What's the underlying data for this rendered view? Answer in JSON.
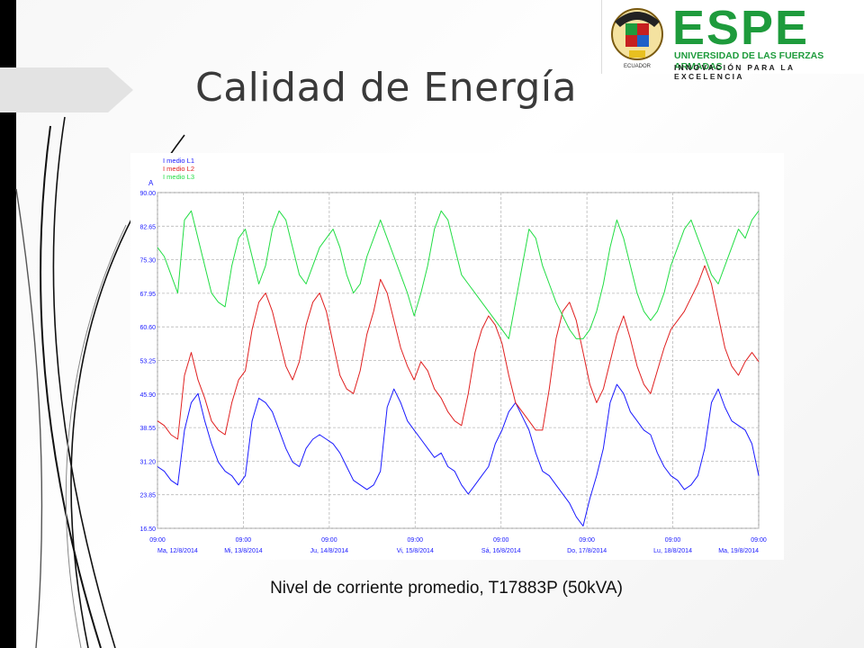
{
  "slide": {
    "title": "Calidad de Energía",
    "caption": "Nivel de corriente promedio, T17883P (50kVA)"
  },
  "logo": {
    "name": "ESPE",
    "subtitle": "UNIVERSIDAD DE LAS FUERZAS ARMADAS",
    "tagline": "INNOVACIÓN PARA LA EXCELENCIA",
    "seal_text": "ECUADOR",
    "brand_color": "#1e9b3c"
  },
  "chart_data": {
    "type": "line",
    "y_unit": "A",
    "ylim": [
      16.5,
      90.0
    ],
    "yticks": [
      "90.00",
      "82.65",
      "75.30",
      "67.95",
      "60.60",
      "53.25",
      "45.90",
      "38.55",
      "31.20",
      "23.85",
      "16.50"
    ],
    "x_tick_time": "09:00",
    "x_tick_dates": [
      "Ma, 12/8/2014",
      "Mi, 13/8/2014",
      "Ju, 14/8/2014",
      "Vi, 15/8/2014",
      "Sá, 16/8/2014",
      "Do, 17/8/2014",
      "Lu, 18/8/2014",
      "Ma, 19/8/2014"
    ],
    "grid": true,
    "legend_position": "top-left",
    "series": [
      {
        "name": "I medio L1",
        "color": "#1a1aff",
        "values": [
          30,
          29,
          27,
          26,
          38,
          44,
          46,
          40,
          35,
          31,
          29,
          28,
          26,
          28,
          40,
          45,
          44,
          42,
          38,
          34,
          31,
          30,
          34,
          36,
          37,
          36,
          35,
          33,
          30,
          27,
          26,
          25,
          26,
          29,
          43,
          47,
          44,
          40,
          38,
          36,
          34,
          32,
          33,
          30,
          29,
          26,
          24,
          26,
          28,
          30,
          35,
          38,
          42,
          44,
          41,
          38,
          33,
          29,
          28,
          26,
          24,
          22,
          19,
          17,
          23,
          28,
          34,
          44,
          48,
          46,
          42,
          40,
          38,
          37,
          33,
          30,
          28,
          27,
          25,
          26,
          28,
          34,
          44,
          47,
          43,
          40,
          39,
          38,
          35,
          28
        ]
      },
      {
        "name": "I medio L2",
        "color": "#e02020",
        "values": [
          40,
          39,
          37,
          36,
          50,
          55,
          49,
          45,
          40,
          38,
          37,
          44,
          49,
          51,
          60,
          66,
          68,
          64,
          58,
          52,
          49,
          53,
          61,
          66,
          68,
          64,
          57,
          50,
          47,
          46,
          51,
          59,
          64,
          71,
          68,
          62,
          56,
          52,
          49,
          53,
          51,
          47,
          45,
          42,
          40,
          39,
          46,
          55,
          60,
          63,
          61,
          57,
          50,
          44,
          42,
          40,
          38,
          38,
          47,
          58,
          64,
          66,
          62,
          55,
          48,
          44,
          47,
          53,
          59,
          63,
          58,
          52,
          48,
          46,
          51,
          56,
          60,
          62,
          64,
          67,
          70,
          74,
          70,
          63,
          56,
          52,
          50,
          53,
          55,
          53
        ]
      },
      {
        "name": "I medio L3",
        "color": "#22dd44",
        "values": [
          78,
          76,
          72,
          68,
          84,
          86,
          80,
          74,
          68,
          66,
          65,
          74,
          80,
          82,
          76,
          70,
          74,
          82,
          86,
          84,
          78,
          72,
          70,
          74,
          78,
          80,
          82,
          78,
          72,
          68,
          70,
          76,
          80,
          84,
          80,
          76,
          72,
          68,
          63,
          68,
          74,
          82,
          86,
          84,
          78,
          72,
          70,
          68,
          66,
          64,
          62,
          60,
          58,
          66,
          74,
          82,
          80,
          74,
          70,
          66,
          63,
          60,
          58,
          58,
          60,
          64,
          70,
          78,
          84,
          80,
          74,
          68,
          64,
          62,
          64,
          68,
          74,
          78,
          82,
          84,
          80,
          76,
          72,
          70,
          74,
          78,
          82,
          80,
          84,
          86
        ]
      }
    ]
  }
}
